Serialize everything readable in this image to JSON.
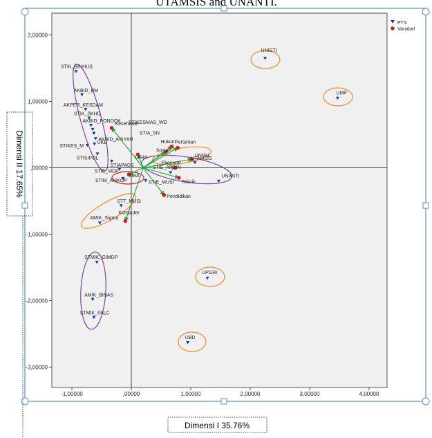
{
  "page": {
    "caption_fragment": "UTAMSIS and UNANTI."
  },
  "colors": {
    "pts": "#1f3a93",
    "variabel": "#e0161c",
    "arrow": "#1aa63a",
    "ellipse_purple": "#7a44a8",
    "ellipse_orange": "#f08a24",
    "plot_bg": "#f0f0f0",
    "frame": "#5b8bd0"
  },
  "chart_data": {
    "type": "scatter",
    "xlabel": "Dimensi I 35.76%",
    "ylabel": "Dimensi II 17.65%",
    "xlim": [
      -1.2,
      4.3
    ],
    "ylim": [
      -3.3,
      2.1
    ],
    "x_ticks": [
      -1,
      0,
      1,
      2,
      3,
      4
    ],
    "x_tick_labels": [
      "-1,00000",
      ",00000",
      "1,00000",
      "2,00000",
      "3,00000",
      "4,00000"
    ],
    "y_ticks": [
      2,
      1,
      0,
      -1,
      -2,
      -3
    ],
    "y_tick_labels": [
      "2,00000",
      "1,00000",
      ",00000",
      "-1,00000",
      "-2,00000",
      "-3,00000"
    ],
    "grid": false,
    "reference_lines": {
      "x": 0,
      "y": 0
    },
    "legend": {
      "position": "top-right",
      "entries": [
        {
          "label": "PTS",
          "marker": "triangle",
          "color": "#1f3a93"
        },
        {
          "label": "Variabel",
          "marker": "circle",
          "color": "#e0161c"
        }
      ]
    },
    "series": [
      {
        "name": "PTS",
        "marker": "triangle",
        "points": [
          {
            "label": "UNISTI",
            "x": 2.25,
            "y": 1.65
          },
          {
            "label": "UMP",
            "x": 3.47,
            "y": 1.05
          },
          {
            "label": "STIK_BINHUS",
            "x": -0.93,
            "y": 1.45
          },
          {
            "label": "AKBID_BM",
            "x": -0.83,
            "y": 1.1
          },
          {
            "label": "AKPER_KESDAM",
            "x": -0.77,
            "y": 0.88
          },
          {
            "label": "STIK_SKHD",
            "x": -0.71,
            "y": 0.75
          },
          {
            "label": "AKBID_PONDOK",
            "x": -0.68,
            "y": 0.64
          },
          {
            "label": "STIKESMAS_WD",
            "x": -0.65,
            "y": 0.58
          },
          {
            "label": "STIA_SN",
            "x": -0.63,
            "y": 0.52
          },
          {
            "label": "AKBID_AISYAH",
            "x": -0.6,
            "y": 0.44
          },
          {
            "label": "STIKES_M",
            "x": -0.74,
            "y": 0.34
          },
          {
            "label": "UKB",
            "x": -0.62,
            "y": 0.36
          },
          {
            "label": "STISIPOL",
            "x": -0.57,
            "y": 0.21
          },
          {
            "label": "STIAPADS",
            "x": -0.33,
            "y": 0.1
          },
          {
            "label": "STIE_MDP",
            "x": -0.2,
            "y": -0.02
          },
          {
            "label": "STIM_AMKOP",
            "x": -0.14,
            "y": -0.16
          },
          {
            "label": "STIE_MUSI",
            "x": 0.24,
            "y": -0.19
          },
          {
            "label": "STIE_APRIN",
            "x": 0.66,
            "y": -0.07
          },
          {
            "label": "UTAMSIS",
            "x": 1.07,
            "y": 0.08
          },
          {
            "label": "UNANTI",
            "x": 1.47,
            "y": -0.2
          },
          {
            "label": "STT_MUSI",
            "x": -0.17,
            "y": -0.57
          },
          {
            "label": "AMIK_Sigma",
            "x": -0.53,
            "y": -0.83
          },
          {
            "label": "STMIK_GIMDP",
            "x": -0.58,
            "y": -1.42
          },
          {
            "label": "AMIK_BINAS",
            "x": -0.65,
            "y": -1.98
          },
          {
            "label": "STMIK_PALC",
            "x": -0.63,
            "y": -2.25
          },
          {
            "label": "UPGRI",
            "x": 1.28,
            "y": -1.66
          },
          {
            "label": "UBD",
            "x": 0.95,
            "y": -2.63
          }
        ]
      },
      {
        "name": "Variabel",
        "marker": "circle",
        "points": [
          {
            "label": "Kesehatan",
            "x": -0.33,
            "y": 0.6
          },
          {
            "label": "Hukum",
            "x": 0.68,
            "y": 0.32
          },
          {
            "label": "Pertanian",
            "x": 0.78,
            "y": 0.3
          },
          {
            "label": "Sosial",
            "x": 0.58,
            "y": 0.24
          },
          {
            "label": "UNPAL",
            "x": 1.02,
            "y": 0.13
          },
          {
            "label": "Ekonomi",
            "x": 0.74,
            "y": 0.0
          },
          {
            "label": "LIGM",
            "x": 0.11,
            "y": 0.2
          },
          {
            "label": "Teknik",
            "x": 0.8,
            "y": -0.15
          },
          {
            "label": "MBA",
            "x": -0.04,
            "y": -0.1
          },
          {
            "label": "Pendidikan",
            "x": 0.55,
            "y": -0.41
          },
          {
            "label": "Komputer",
            "x": -0.1,
            "y": -0.8
          }
        ]
      }
    ]
  }
}
